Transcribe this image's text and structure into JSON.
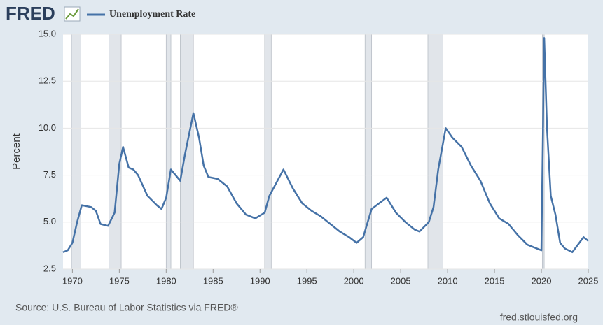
{
  "chart_data": {
    "type": "line",
    "logo": "FRED",
    "ylabel": "Percent",
    "source": "Source: U.S. Bureau of Labor Statistics via FRED®",
    "site": "fred.stlouisfed.org",
    "xlim": [
      1969,
      2025
    ],
    "xticks": [
      1970,
      1975,
      1980,
      1985,
      1990,
      1995,
      2000,
      2005,
      2010,
      2015,
      2020,
      2025
    ],
    "ylim": [
      2.5,
      15
    ],
    "yticks": [
      2.5,
      {
        "value": 5,
        "label": "5.0"
      },
      7.5,
      {
        "value": 10,
        "label": "10.0"
      },
      12.5,
      {
        "value": 15,
        "label": "15.0"
      }
    ],
    "grid": true,
    "recessions": [
      {
        "start": 1969.9,
        "end": 1970.9
      },
      {
        "start": 1973.9,
        "end": 1975.2
      },
      {
        "start": 1980.0,
        "end": 1980.5
      },
      {
        "start": 1981.5,
        "end": 1982.9
      },
      {
        "start": 1990.5,
        "end": 1991.2
      },
      {
        "start": 2001.2,
        "end": 2001.9
      },
      {
        "start": 2007.9,
        "end": 2009.5
      },
      {
        "start": 2020.1,
        "end": 2020.3
      }
    ],
    "recession_color": "#e1e5ea",
    "series": [
      {
        "name": "Unemployment Rate",
        "color": "#4572a7",
        "x": [
          1969.0,
          1969.5,
          1970.0,
          1970.5,
          1971.0,
          1972.0,
          1972.5,
          1973.0,
          1973.8,
          1974.5,
          1975.0,
          1975.4,
          1976.0,
          1976.5,
          1977.0,
          1978.0,
          1979.0,
          1979.5,
          1980.0,
          1980.5,
          1981.0,
          1981.5,
          1982.0,
          1982.9,
          1983.5,
          1984.0,
          1984.5,
          1985.5,
          1986.5,
          1987.5,
          1988.5,
          1989.5,
          1990.5,
          1991.0,
          1992.5,
          1993.5,
          1994.5,
          1995.5,
          1996.5,
          1997.5,
          1998.5,
          1999.5,
          2000.3,
          2001.0,
          2001.9,
          2003.5,
          2004.5,
          2005.5,
          2006.5,
          2007.0,
          2008.0,
          2008.5,
          2009.0,
          2009.8,
          2010.5,
          2011.5,
          2012.5,
          2013.5,
          2014.5,
          2015.5,
          2016.5,
          2017.5,
          2018.5,
          2019.5,
          2020.0,
          2020.3,
          2020.6,
          2021.0,
          2021.5,
          2022.0,
          2022.5,
          2023.3,
          2024.5,
          2025.0
        ],
        "values": [
          3.4,
          3.5,
          3.9,
          5.0,
          5.9,
          5.8,
          5.6,
          4.9,
          4.8,
          5.5,
          8.1,
          9.0,
          7.9,
          7.8,
          7.5,
          6.4,
          5.9,
          5.7,
          6.3,
          7.8,
          7.5,
          7.2,
          8.6,
          10.8,
          9.5,
          8.0,
          7.4,
          7.3,
          6.9,
          6.0,
          5.4,
          5.2,
          5.5,
          6.4,
          7.8,
          6.8,
          6.0,
          5.6,
          5.3,
          4.9,
          4.5,
          4.2,
          3.9,
          4.2,
          5.7,
          6.3,
          5.5,
          5.0,
          4.6,
          4.5,
          5.0,
          5.8,
          7.8,
          10.0,
          9.5,
          9.0,
          8.0,
          7.2,
          6.0,
          5.2,
          4.9,
          4.3,
          3.8,
          3.6,
          3.5,
          14.8,
          10.0,
          6.4,
          5.4,
          3.9,
          3.6,
          3.4,
          4.2,
          4.0
        ]
      }
    ]
  }
}
